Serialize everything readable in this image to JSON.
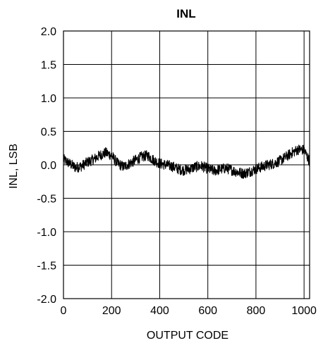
{
  "chart_data": {
    "type": "line",
    "title": "INL",
    "xlabel": "OUTPUT CODE",
    "ylabel": "INL, LSB",
    "xlim": [
      0,
      1023
    ],
    "ylim": [
      -2.0,
      2.0
    ],
    "grid": true,
    "legend": "none",
    "line_color": "#000000",
    "x_ticks": [
      0,
      200,
      400,
      600,
      800,
      1000
    ],
    "x_tick_labels": [
      "0",
      "200",
      "400",
      "600",
      "800",
      "1000"
    ],
    "y_ticks": [
      2.0,
      1.5,
      1.0,
      0.5,
      0.0,
      -0.5,
      -1.0,
      -1.5,
      -2.0
    ],
    "y_tick_labels": [
      "2.0",
      "1.5",
      "1.0",
      "0.5",
      "0.0",
      "-0.5",
      "-1.0",
      "-1.5",
      "-2.0"
    ],
    "series": [
      {
        "x": [
          0,
          25,
          50,
          75,
          100,
          125,
          150,
          175,
          200,
          225,
          250,
          275,
          300,
          325,
          350,
          375,
          400,
          425,
          450,
          475,
          500,
          525,
          550,
          575,
          600,
          625,
          650,
          675,
          700,
          725,
          750,
          775,
          800,
          825,
          850,
          875,
          900,
          925,
          950,
          975,
          1000,
          1023
        ],
        "y": [
          0.08,
          0.02,
          -0.04,
          -0.02,
          0.04,
          0.08,
          0.14,
          0.18,
          0.14,
          0.02,
          -0.03,
          0.02,
          0.07,
          0.12,
          0.14,
          0.07,
          0.02,
          0.0,
          -0.02,
          -0.06,
          -0.08,
          -0.06,
          -0.03,
          -0.02,
          -0.06,
          -0.09,
          -0.07,
          -0.05,
          -0.08,
          -0.11,
          -0.13,
          -0.1,
          -0.06,
          -0.03,
          0.0,
          0.02,
          0.06,
          0.12,
          0.18,
          0.23,
          0.22,
          0.05
        ],
        "noise_amplitude": 0.08
      }
    ]
  }
}
